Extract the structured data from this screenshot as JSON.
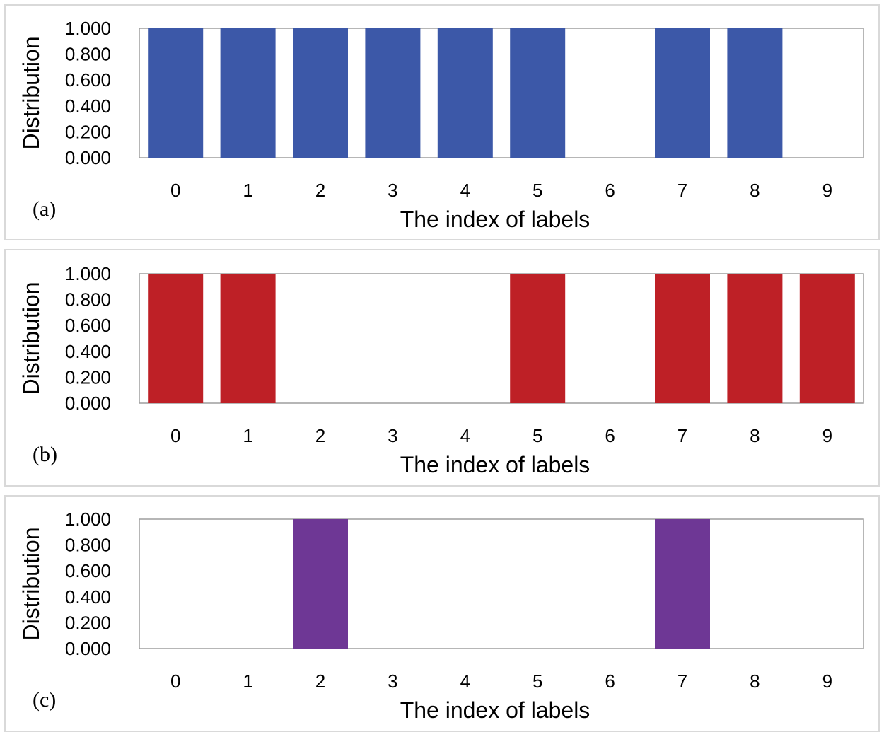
{
  "chart_data": [
    {
      "type": "bar",
      "panel_label": "(a)",
      "categories": [
        "0",
        "1",
        "2",
        "3",
        "4",
        "5",
        "6",
        "7",
        "8",
        "9"
      ],
      "values": [
        1,
        1,
        1,
        1,
        1,
        1,
        0,
        1,
        1,
        0
      ],
      "color": "#3c58a8",
      "ylabel": "Distribution",
      "xlabel": "The index of labels",
      "ylim": [
        0,
        1
      ],
      "yticks": [
        "0.000",
        "0.200",
        "0.400",
        "0.600",
        "0.800",
        "1.000"
      ],
      "grid": false
    },
    {
      "type": "bar",
      "panel_label": "(b)",
      "categories": [
        "0",
        "1",
        "2",
        "3",
        "4",
        "5",
        "6",
        "7",
        "8",
        "9"
      ],
      "values": [
        1,
        1,
        0,
        0,
        0,
        1,
        0,
        1,
        1,
        1
      ],
      "color": "#be2026",
      "ylabel": "Distribution",
      "xlabel": "The index of labels",
      "ylim": [
        0,
        1
      ],
      "yticks": [
        "0.000",
        "0.200",
        "0.400",
        "0.600",
        "0.800",
        "1.000"
      ],
      "grid": false
    },
    {
      "type": "bar",
      "panel_label": "(c)",
      "categories": [
        "0",
        "1",
        "2",
        "3",
        "4",
        "5",
        "6",
        "7",
        "8",
        "9"
      ],
      "values": [
        0,
        0,
        1,
        0,
        0,
        0,
        0,
        1,
        0,
        0
      ],
      "color": "#6e3795",
      "ylabel": "Distribution",
      "xlabel": "The index of labels",
      "ylim": [
        0,
        1
      ],
      "yticks": [
        "0.000",
        "0.200",
        "0.400",
        "0.600",
        "0.800",
        "1.000"
      ],
      "grid": false
    }
  ]
}
